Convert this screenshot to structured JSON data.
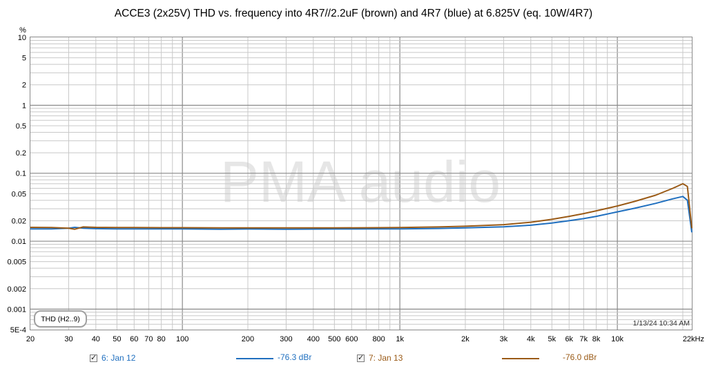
{
  "title": "ACCE3 (2x25V) THD vs. frequency into 4R7//2.2uF (brown) and 4R7 (blue) at 6.825V (eq. 10W/4R7)",
  "watermark": "PMA audio",
  "measurement_label": "THD (H2..9)",
  "timestamp": "1/13/24 10:34 AM",
  "colors": {
    "blue": "#1f6fbf",
    "brown": "#9a5a16",
    "grid": "#c8c8c8",
    "grid_major": "#8a8a8a",
    "watermark": "#e6e6e6"
  },
  "legend": [
    {
      "name": "6: Jan 12",
      "value": "-76.3 dBr",
      "color": "#1f6fbf",
      "checked": true
    },
    {
      "name": "7: Jan 13",
      "value": "-76.0 dBr",
      "color": "#9a5a16",
      "checked": true
    }
  ],
  "chart_data": {
    "type": "line",
    "title": "ACCE3 (2x25V) THD vs. frequency into 4R7//2.2uF (brown) and 4R7 (blue) at 6.825V (eq. 10W/4R7)",
    "x_scale": "log",
    "y_scale": "log",
    "xlim": [
      20,
      22000
    ],
    "ylim": [
      0.0005,
      10
    ],
    "y_unit": "%",
    "x_ticks": [
      {
        "v": 20,
        "label": "20"
      },
      {
        "v": 30,
        "label": "30"
      },
      {
        "v": 40,
        "label": "40"
      },
      {
        "v": 50,
        "label": "50"
      },
      {
        "v": 60,
        "label": "60"
      },
      {
        "v": 70,
        "label": "70"
      },
      {
        "v": 80,
        "label": "80"
      },
      {
        "v": 100,
        "label": "100"
      },
      {
        "v": 200,
        "label": "200"
      },
      {
        "v": 300,
        "label": "300"
      },
      {
        "v": 400,
        "label": "400"
      },
      {
        "v": 500,
        "label": "500"
      },
      {
        "v": 600,
        "label": "600"
      },
      {
        "v": 800,
        "label": "800"
      },
      {
        "v": 1000,
        "label": "1k"
      },
      {
        "v": 2000,
        "label": "2k"
      },
      {
        "v": 3000,
        "label": "3k"
      },
      {
        "v": 4000,
        "label": "4k"
      },
      {
        "v": 5000,
        "label": "5k"
      },
      {
        "v": 6000,
        "label": "6k"
      },
      {
        "v": 7000,
        "label": "7k"
      },
      {
        "v": 8000,
        "label": "8k"
      },
      {
        "v": 10000,
        "label": "10k"
      },
      {
        "v": 22000,
        "label": "22kHz"
      }
    ],
    "y_ticks": [
      {
        "v": 10,
        "label": "10"
      },
      {
        "v": 5,
        "label": "5"
      },
      {
        "v": 2,
        "label": "2"
      },
      {
        "v": 1,
        "label": "1"
      },
      {
        "v": 0.5,
        "label": "0.5"
      },
      {
        "v": 0.2,
        "label": "0.2"
      },
      {
        "v": 0.1,
        "label": "0.1"
      },
      {
        "v": 0.05,
        "label": "0.05"
      },
      {
        "v": 0.02,
        "label": "0.02"
      },
      {
        "v": 0.01,
        "label": "0.01"
      },
      {
        "v": 0.005,
        "label": "0.005"
      },
      {
        "v": 0.002,
        "label": "0.002"
      },
      {
        "v": 0.001,
        "label": "0.001"
      },
      {
        "v": 0.0005,
        "label": "5E-4"
      }
    ],
    "series": [
      {
        "name": "6: Jan 12",
        "color": "#1f6fbf",
        "points": [
          [
            20,
            0.0152
          ],
          [
            25,
            0.0152
          ],
          [
            30,
            0.0155
          ],
          [
            32,
            0.016
          ],
          [
            35,
            0.0155
          ],
          [
            40,
            0.0153
          ],
          [
            50,
            0.0152
          ],
          [
            60,
            0.0152
          ],
          [
            80,
            0.0152
          ],
          [
            100,
            0.0152
          ],
          [
            150,
            0.015
          ],
          [
            200,
            0.0151
          ],
          [
            300,
            0.015
          ],
          [
            500,
            0.0151
          ],
          [
            800,
            0.0152
          ],
          [
            1000,
            0.0152
          ],
          [
            1500,
            0.0154
          ],
          [
            2000,
            0.0157
          ],
          [
            3000,
            0.0163
          ],
          [
            4000,
            0.0172
          ],
          [
            5000,
            0.0185
          ],
          [
            6000,
            0.02
          ],
          [
            7000,
            0.0215
          ],
          [
            8000,
            0.0232
          ],
          [
            10000,
            0.027
          ],
          [
            12000,
            0.0305
          ],
          [
            15000,
            0.036
          ],
          [
            18000,
            0.042
          ],
          [
            20000,
            0.0455
          ],
          [
            21000,
            0.04
          ],
          [
            22000,
            0.0135
          ]
        ]
      },
      {
        "name": "7: Jan 13",
        "color": "#9a5a16",
        "points": [
          [
            20,
            0.016
          ],
          [
            25,
            0.0159
          ],
          [
            30,
            0.0155
          ],
          [
            32,
            0.015
          ],
          [
            35,
            0.0162
          ],
          [
            40,
            0.016
          ],
          [
            50,
            0.0159
          ],
          [
            60,
            0.0159
          ],
          [
            80,
            0.0158
          ],
          [
            100,
            0.0158
          ],
          [
            150,
            0.0157
          ],
          [
            200,
            0.0157
          ],
          [
            300,
            0.0157
          ],
          [
            500,
            0.0157
          ],
          [
            800,
            0.0158
          ],
          [
            1000,
            0.0159
          ],
          [
            1500,
            0.0162
          ],
          [
            2000,
            0.0166
          ],
          [
            3000,
            0.0175
          ],
          [
            4000,
            0.019
          ],
          [
            5000,
            0.021
          ],
          [
            6000,
            0.0232
          ],
          [
            7000,
            0.0255
          ],
          [
            8000,
            0.028
          ],
          [
            10000,
            0.033
          ],
          [
            12000,
            0.0385
          ],
          [
            15000,
            0.0475
          ],
          [
            18000,
            0.06
          ],
          [
            20000,
            0.07
          ],
          [
            21000,
            0.064
          ],
          [
            22000,
            0.0155
          ]
        ]
      }
    ]
  }
}
